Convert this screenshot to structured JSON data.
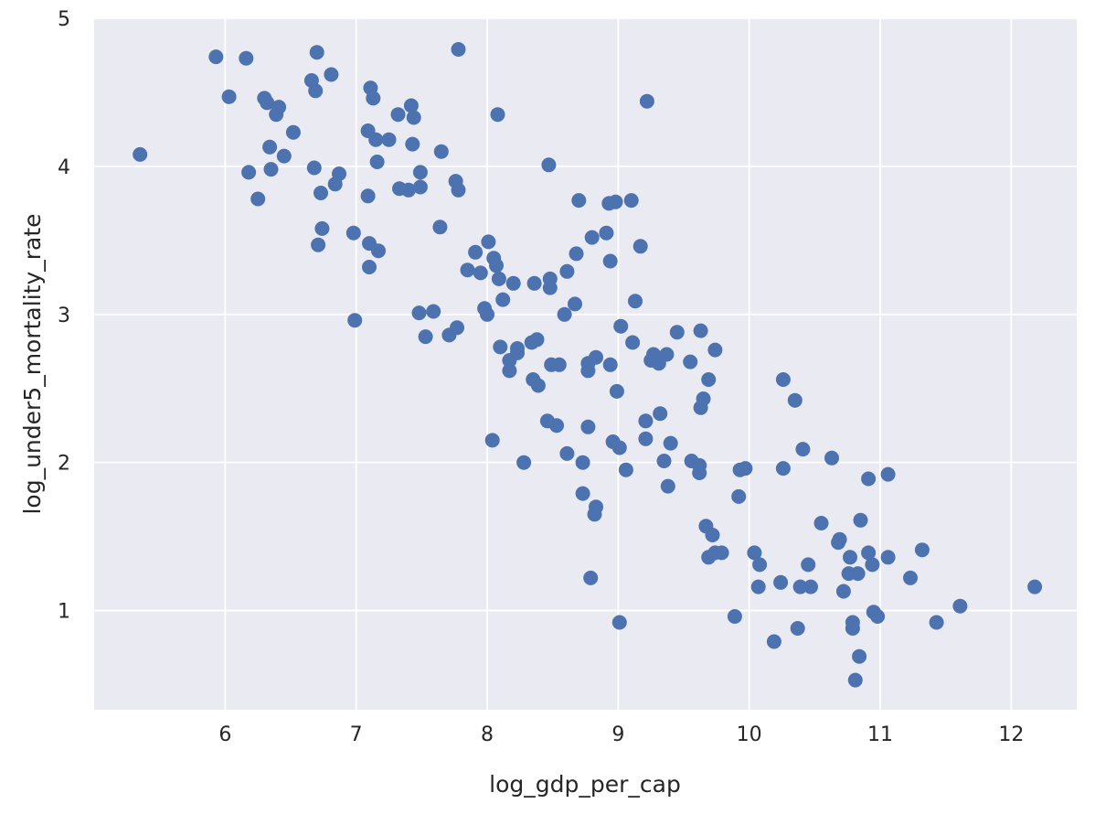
{
  "chart_data": {
    "type": "scatter",
    "title": "",
    "xlabel": "log_gdp_per_cap",
    "ylabel": "log_under5_mortality_rate",
    "xlim": [
      5.0,
      12.5
    ],
    "ylim": [
      0.33,
      5.0
    ],
    "xticks": [
      6,
      7,
      8,
      9,
      10,
      11,
      12
    ],
    "yticks": [
      1,
      2,
      3,
      4,
      5
    ],
    "grid": true,
    "background": "#eaeaf2",
    "grid_color": "#ffffff",
    "marker_color": "#4c72b0",
    "points": [
      [
        5.35,
        4.08
      ],
      [
        5.93,
        4.74
      ],
      [
        6.03,
        4.47
      ],
      [
        6.16,
        4.73
      ],
      [
        6.18,
        3.96
      ],
      [
        6.25,
        3.78
      ],
      [
        6.3,
        4.46
      ],
      [
        6.32,
        4.43
      ],
      [
        6.34,
        4.13
      ],
      [
        6.35,
        3.98
      ],
      [
        6.39,
        4.35
      ],
      [
        6.41,
        4.4
      ],
      [
        6.45,
        4.07
      ],
      [
        6.52,
        4.23
      ],
      [
        6.66,
        4.58
      ],
      [
        6.68,
        3.99
      ],
      [
        6.69,
        4.51
      ],
      [
        6.7,
        4.77
      ],
      [
        6.71,
        3.47
      ],
      [
        6.73,
        3.82
      ],
      [
        6.74,
        3.58
      ],
      [
        6.81,
        4.62
      ],
      [
        6.84,
        3.88
      ],
      [
        6.87,
        3.95
      ],
      [
        6.98,
        3.55
      ],
      [
        6.99,
        2.96
      ],
      [
        7.09,
        4.24
      ],
      [
        7.09,
        3.8
      ],
      [
        7.1,
        3.48
      ],
      [
        7.1,
        3.32
      ],
      [
        7.11,
        4.53
      ],
      [
        7.13,
        4.46
      ],
      [
        7.15,
        4.18
      ],
      [
        7.16,
        4.03
      ],
      [
        7.17,
        3.43
      ],
      [
        7.25,
        4.18
      ],
      [
        7.32,
        4.35
      ],
      [
        7.33,
        3.85
      ],
      [
        7.4,
        3.84
      ],
      [
        7.42,
        4.41
      ],
      [
        7.43,
        4.15
      ],
      [
        7.44,
        4.33
      ],
      [
        7.49,
        3.96
      ],
      [
        7.49,
        3.86
      ],
      [
        7.48,
        3.01
      ],
      [
        7.53,
        2.85
      ],
      [
        7.59,
        3.02
      ],
      [
        7.64,
        3.59
      ],
      [
        7.65,
        4.1
      ],
      [
        7.71,
        2.86
      ],
      [
        7.76,
        3.9
      ],
      [
        7.77,
        2.91
      ],
      [
        7.78,
        4.79
      ],
      [
        7.78,
        3.84
      ],
      [
        7.85,
        3.3
      ],
      [
        7.91,
        3.42
      ],
      [
        7.95,
        3.28
      ],
      [
        7.98,
        3.04
      ],
      [
        8.0,
        3.0
      ],
      [
        8.01,
        3.49
      ],
      [
        8.04,
        2.15
      ],
      [
        8.05,
        3.38
      ],
      [
        8.07,
        3.33
      ],
      [
        8.08,
        4.35
      ],
      [
        8.09,
        3.24
      ],
      [
        8.1,
        2.78
      ],
      [
        8.12,
        3.1
      ],
      [
        8.17,
        2.69
      ],
      [
        8.17,
        2.62
      ],
      [
        8.2,
        3.21
      ],
      [
        8.23,
        2.77
      ],
      [
        8.23,
        2.74
      ],
      [
        8.28,
        2.0
      ],
      [
        8.34,
        2.81
      ],
      [
        8.35,
        2.56
      ],
      [
        8.36,
        3.21
      ],
      [
        8.38,
        2.83
      ],
      [
        8.39,
        2.52
      ],
      [
        8.46,
        2.28
      ],
      [
        8.47,
        4.01
      ],
      [
        8.48,
        3.24
      ],
      [
        8.48,
        3.18
      ],
      [
        8.49,
        2.66
      ],
      [
        8.53,
        2.25
      ],
      [
        8.55,
        2.66
      ],
      [
        8.59,
        3.0
      ],
      [
        8.61,
        3.29
      ],
      [
        8.61,
        2.06
      ],
      [
        8.67,
        3.07
      ],
      [
        8.68,
        3.41
      ],
      [
        8.7,
        3.77
      ],
      [
        8.73,
        1.79
      ],
      [
        8.73,
        2.0
      ],
      [
        8.77,
        2.24
      ],
      [
        8.77,
        2.67
      ],
      [
        8.77,
        2.62
      ],
      [
        8.79,
        1.22
      ],
      [
        8.8,
        3.52
      ],
      [
        8.82,
        1.65
      ],
      [
        8.83,
        2.71
      ],
      [
        8.83,
        1.7
      ],
      [
        8.91,
        3.55
      ],
      [
        8.93,
        3.75
      ],
      [
        8.94,
        3.36
      ],
      [
        8.94,
        2.66
      ],
      [
        8.96,
        2.14
      ],
      [
        8.98,
        3.76
      ],
      [
        8.99,
        2.48
      ],
      [
        9.01,
        2.1
      ],
      [
        9.01,
        0.92
      ],
      [
        9.02,
        2.92
      ],
      [
        9.06,
        1.95
      ],
      [
        9.1,
        3.77
      ],
      [
        9.11,
        2.81
      ],
      [
        9.13,
        3.09
      ],
      [
        9.17,
        3.46
      ],
      [
        9.21,
        2.28
      ],
      [
        9.21,
        2.16
      ],
      [
        9.22,
        4.44
      ],
      [
        9.25,
        2.69
      ],
      [
        9.27,
        2.73
      ],
      [
        9.29,
        2.7
      ],
      [
        9.31,
        2.67
      ],
      [
        9.32,
        2.33
      ],
      [
        9.35,
        2.01
      ],
      [
        9.37,
        2.73
      ],
      [
        9.38,
        1.84
      ],
      [
        9.4,
        2.13
      ],
      [
        9.45,
        2.88
      ],
      [
        9.55,
        2.68
      ],
      [
        9.56,
        2.01
      ],
      [
        9.62,
        1.93
      ],
      [
        9.62,
        1.98
      ],
      [
        9.63,
        2.89
      ],
      [
        9.63,
        2.37
      ],
      [
        9.65,
        2.43
      ],
      [
        9.67,
        1.57
      ],
      [
        9.69,
        2.56
      ],
      [
        9.69,
        1.36
      ],
      [
        9.72,
        1.51
      ],
      [
        9.74,
        2.76
      ],
      [
        9.74,
        1.39
      ],
      [
        9.79,
        1.39
      ],
      [
        9.89,
        0.96
      ],
      [
        9.92,
        1.77
      ],
      [
        9.93,
        1.95
      ],
      [
        9.97,
        1.96
      ],
      [
        10.04,
        1.39
      ],
      [
        10.07,
        1.16
      ],
      [
        10.08,
        1.31
      ],
      [
        10.19,
        0.79
      ],
      [
        10.24,
        1.19
      ],
      [
        10.26,
        2.56
      ],
      [
        10.26,
        1.96
      ],
      [
        10.35,
        2.42
      ],
      [
        10.37,
        0.88
      ],
      [
        10.39,
        1.16
      ],
      [
        10.41,
        2.09
      ],
      [
        10.45,
        1.31
      ],
      [
        10.47,
        1.16
      ],
      [
        10.55,
        1.59
      ],
      [
        10.63,
        2.03
      ],
      [
        10.68,
        1.46
      ],
      [
        10.69,
        1.48
      ],
      [
        10.72,
        1.13
      ],
      [
        10.76,
        1.25
      ],
      [
        10.77,
        1.36
      ],
      [
        10.79,
        0.92
      ],
      [
        10.79,
        0.88
      ],
      [
        10.81,
        0.53
      ],
      [
        10.83,
        1.25
      ],
      [
        10.84,
        0.69
      ],
      [
        10.85,
        1.61
      ],
      [
        10.91,
        1.89
      ],
      [
        10.91,
        1.39
      ],
      [
        10.94,
        1.31
      ],
      [
        10.95,
        0.99
      ],
      [
        10.98,
        0.96
      ],
      [
        11.06,
        1.92
      ],
      [
        11.06,
        1.36
      ],
      [
        11.23,
        1.22
      ],
      [
        11.32,
        1.41
      ],
      [
        11.43,
        0.92
      ],
      [
        11.61,
        1.03
      ],
      [
        12.18,
        1.16
      ]
    ]
  }
}
